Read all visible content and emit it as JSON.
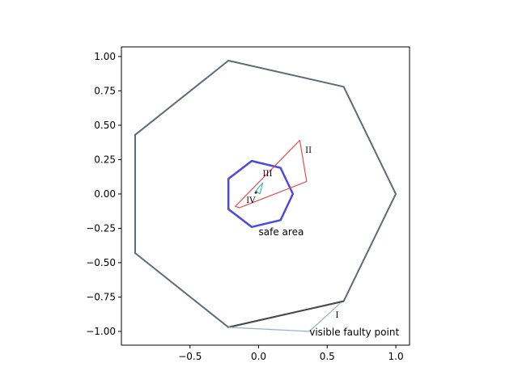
{
  "chart_data": {
    "type": "line",
    "title": "",
    "xlabel": "",
    "ylabel": "",
    "xlim": [
      -1.0,
      1.1
    ],
    "ylim": [
      -1.1,
      1.07
    ],
    "grid": false,
    "aspect": "equal",
    "x_ticks": [
      -0.5,
      0.0,
      0.5,
      1.0
    ],
    "x_tick_labels": [
      "−0.5",
      "0.0",
      "0.5",
      "1.0"
    ],
    "y_ticks": [
      1.0,
      0.75,
      0.5,
      0.25,
      0.0,
      -0.25,
      -0.5,
      -0.75,
      -1.0
    ],
    "y_tick_labels": [
      "1.00",
      "0.75",
      "0.50",
      "0.25",
      "0.00",
      "−0.25",
      "−0.50",
      "−0.75",
      "−1.00"
    ],
    "series": [
      {
        "color": "#5a6b7c",
        "width": 2,
        "closed": true,
        "points": [
          [
            1.0,
            0.0
          ],
          [
            0.62,
            0.78
          ],
          [
            -0.22,
            0.97
          ],
          [
            -0.9,
            0.43
          ],
          [
            -0.9,
            -0.43
          ],
          [
            -0.22,
            -0.97
          ],
          [
            0.62,
            -0.78
          ]
        ]
      },
      {
        "color": "#4a4a4a",
        "width": 2,
        "closed": false,
        "points": [
          [
            -0.22,
            -0.97
          ],
          [
            0.62,
            -0.78
          ]
        ]
      },
      {
        "color": "#4a4ae0",
        "width": 2.5,
        "closed": true,
        "points": [
          [
            0.25,
            0.0
          ],
          [
            0.16,
            0.19
          ],
          [
            -0.05,
            0.24
          ],
          [
            -0.22,
            0.11
          ],
          [
            -0.22,
            -0.11
          ],
          [
            -0.05,
            -0.24
          ],
          [
            0.16,
            -0.19
          ]
        ]
      },
      {
        "color": "#e05050",
        "width": 1.2,
        "closed": true,
        "points": [
          [
            -0.17,
            -0.09
          ],
          [
            0.3,
            0.39
          ],
          [
            0.35,
            0.09
          ],
          [
            -0.14,
            -0.1
          ]
        ]
      },
      {
        "color": "#20b2a0",
        "width": 1,
        "closed": true,
        "points": [
          [
            -0.02,
            0.02
          ],
          [
            0.01,
            0.06
          ],
          [
            0.03,
            0.08
          ],
          [
            0.01,
            0.0
          ]
        ]
      },
      {
        "color": "#93b2d2",
        "width": 1.2,
        "closed": false,
        "points": [
          [
            -0.22,
            -0.97
          ],
          [
            0.37,
            -1.0
          ],
          [
            0.6,
            -0.79
          ]
        ]
      }
    ],
    "markers": [
      {
        "x": -0.02,
        "y": 0.01,
        "color": "#333333"
      }
    ],
    "annotations": [
      {
        "text": "safe area",
        "x": 0.0,
        "y": -0.3,
        "style": "sans",
        "anchor": "start"
      },
      {
        "text": "visible faulty point",
        "x": 0.37,
        "y": -1.03,
        "style": "sans",
        "anchor": "start"
      },
      {
        "text": "I",
        "x": 0.56,
        "y": -0.9,
        "style": "serif",
        "anchor": "start"
      },
      {
        "text": "II",
        "x": 0.34,
        "y": 0.3,
        "style": "serif",
        "anchor": "start"
      },
      {
        "text": "III",
        "x": 0.03,
        "y": 0.13,
        "style": "serif",
        "anchor": "start"
      },
      {
        "text": "IV",
        "x": -0.09,
        "y": -0.065,
        "style": "serif",
        "anchor": "start"
      }
    ]
  }
}
